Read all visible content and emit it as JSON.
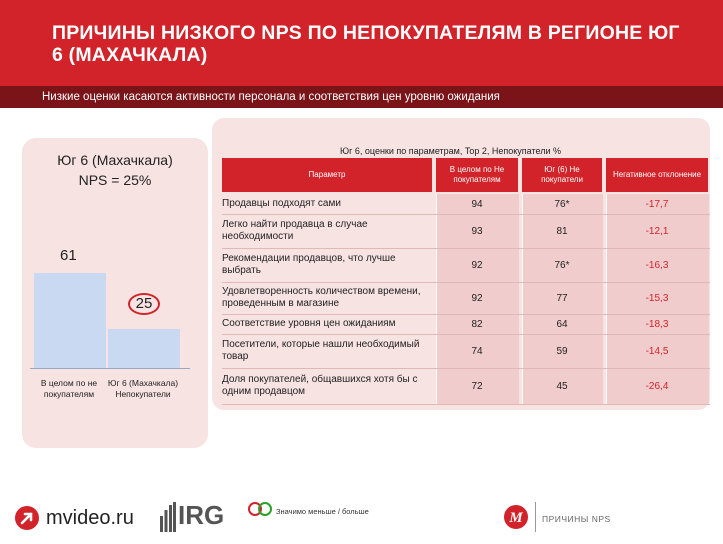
{
  "header": {
    "title": "ПРИЧИНЫ НИЗКОГО NPS ПО НЕПОКУПАТЕЛЯМ В РЕГИОНЕ ЮГ 6 (МАХАЧКАЛА)",
    "subtitle": "Низкие оценки касаются активности персонала и соответствия цен уровню ожидания"
  },
  "left_chart": {
    "title_line1": "Юг 6 (Махачкала)",
    "title_line2": "NPS = 25%"
  },
  "chart_data": {
    "type": "bar",
    "categories": [
      "В целом по не покупателям",
      "Юг 6 (Махачкала) Непокупатели"
    ],
    "values": [
      61,
      25
    ],
    "value_labels": [
      "61",
      "25"
    ],
    "title": "Юг 6 (Махачкала) NPS = 25%",
    "ylim": [
      0,
      100
    ],
    "highlight_index": 1,
    "bar_color": "#c9d9f2",
    "highlight_color": "#d2232a"
  },
  "table": {
    "title": "Юг 6, оценки по параметрам, Top 2, Непокупатели %",
    "headers": [
      "Параметр",
      "В целом по Не покупателям",
      "Юг (6) Не покупатели",
      "Негативное отклонение"
    ],
    "rows": [
      {
        "param": "Продавцы подходят сами",
        "total": "94",
        "region": "76*",
        "dev": "-17,7"
      },
      {
        "param": "Легко найти продавца в случае необходимости",
        "total": "93",
        "region": "81",
        "dev": "-12,1"
      },
      {
        "param": "Рекомендации продавцов, что лучше выбрать",
        "total": "92",
        "region": "76*",
        "dev": "-16,3"
      },
      {
        "param": "Удовлетворенность количеством времени, проведенным в магазине",
        "total": "92",
        "region": "77",
        "dev": "-15,3"
      },
      {
        "param": "Соответствие уровня цен ожиданиям",
        "total": "82",
        "region": "64",
        "dev": "-18,3"
      },
      {
        "param": "Посетители, которые нашли необходимый товар",
        "total": "74",
        "region": "59",
        "dev": "-14,5"
      },
      {
        "param": "Доля покупателей, общавшихся хотя бы с одним продавцом",
        "total": "72",
        "region": "45",
        "dev": "-26,4"
      }
    ]
  },
  "footer": {
    "mvideo_logo": "mvideo.ru",
    "irg_logo": "IRG",
    "legend": "Значимо меньше / больше",
    "label": "ПРИЧИНЫ NPS"
  },
  "colors": {
    "brand_red": "#d2232a",
    "dark_red": "#7a1418",
    "panel_pink": "#f8e3e3",
    "bar_blue": "#c9d9f2"
  }
}
